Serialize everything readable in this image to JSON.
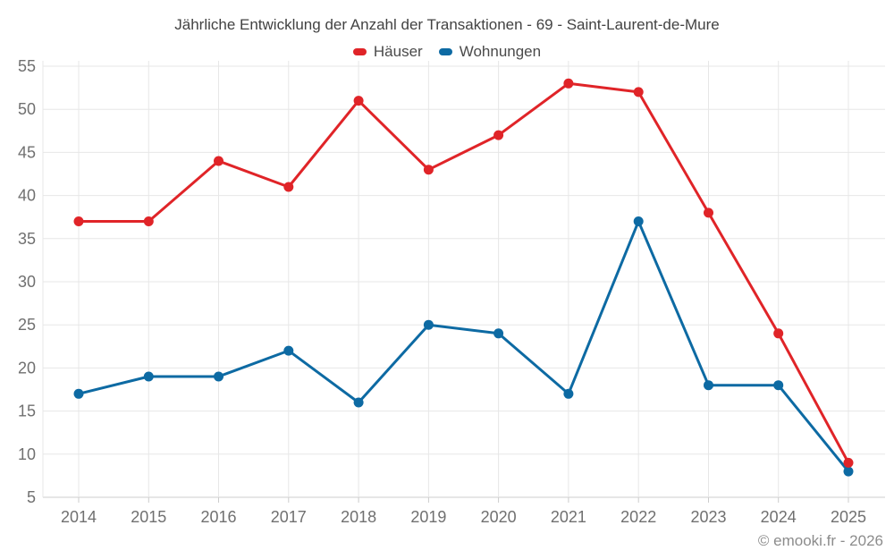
{
  "page": {
    "footer": "© emooki.fr - 2026"
  },
  "colors": {
    "title_text": "#424242",
    "axis_label": "#707070",
    "gridline": "#e7e7e7",
    "axis_line": "#cccccc",
    "footer_text": "#8c8c8c",
    "haeuser_red": "#e02428",
    "wohnungen_blue": "#0d6aa3"
  },
  "chart_data": {
    "type": "line",
    "title": "Jährliche Entwicklung der Anzahl der Transaktionen - 69 - Saint-Laurent-de-Mure",
    "categories": [
      "2014",
      "2015",
      "2016",
      "2017",
      "2018",
      "2019",
      "2020",
      "2021",
      "2022",
      "2023",
      "2024",
      "2025"
    ],
    "series": [
      {
        "name": "Häuser",
        "color": "#e02428",
        "values": [
          37,
          37,
          44,
          41,
          51,
          43,
          47,
          53,
          52,
          38,
          24,
          9
        ]
      },
      {
        "name": "Wohnungen",
        "color": "#0d6aa3",
        "values": [
          17,
          19,
          19,
          22,
          16,
          25,
          24,
          17,
          37,
          18,
          18,
          8
        ]
      }
    ],
    "xlabel": "",
    "ylabel": "",
    "ylim": [
      5,
      55
    ],
    "ytick_step": 5,
    "grid": true,
    "legend_position": "top-center",
    "marker_radius": 5.5,
    "line_width": 3
  }
}
